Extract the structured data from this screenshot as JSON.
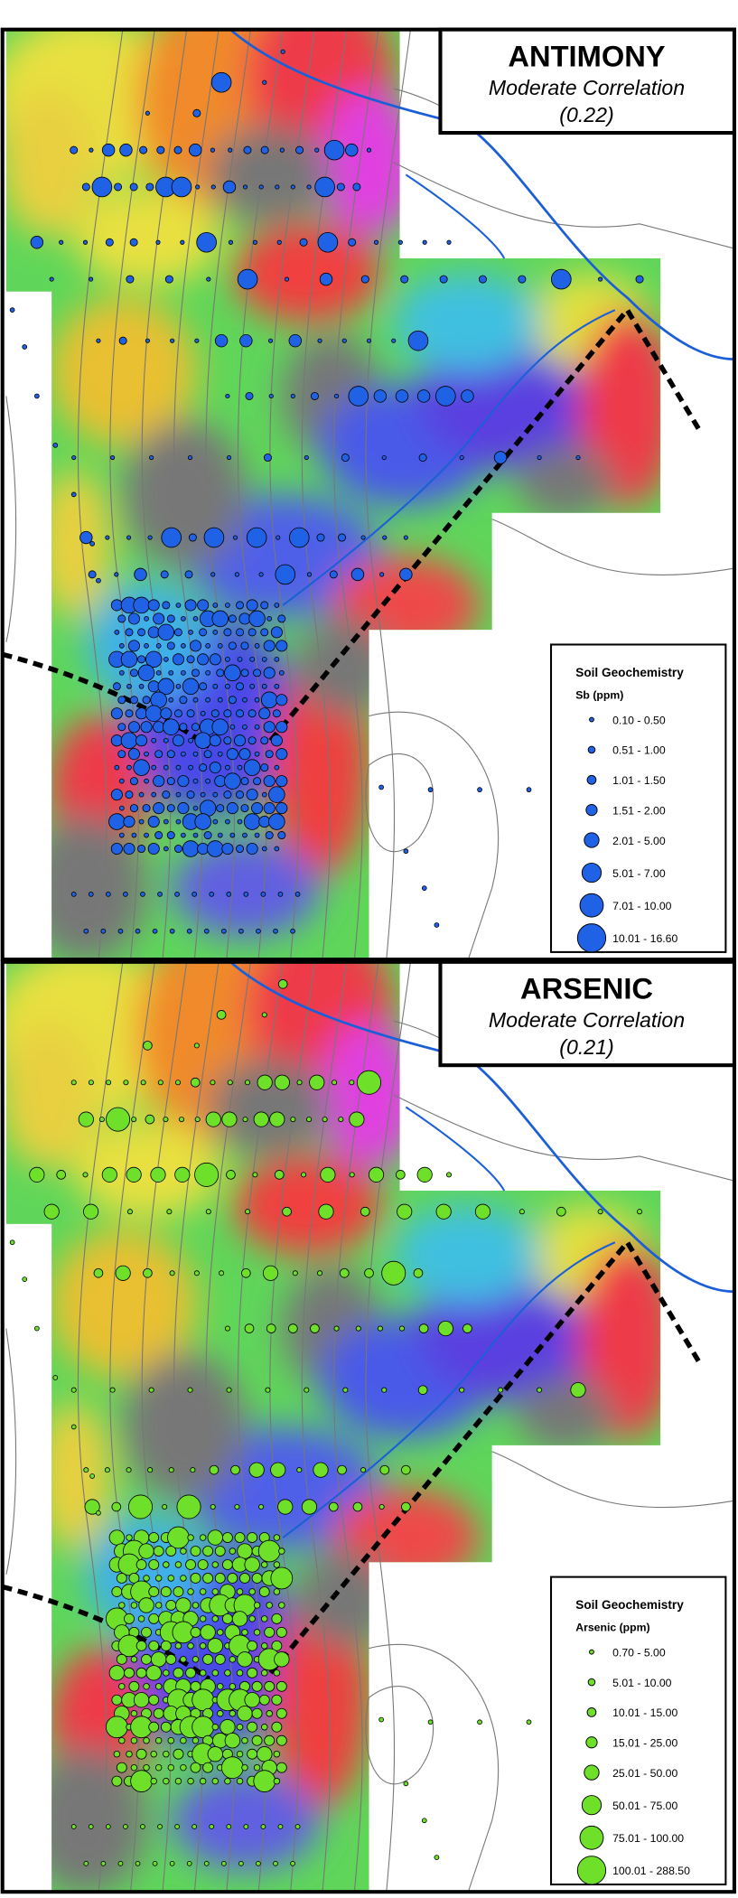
{
  "panels": [
    {
      "title": "ANTIMONY",
      "subtitle": "Moderate Correlation",
      "correlation": "(0.22)",
      "legend": {
        "title": "Soil Geochemistry",
        "unit": "Sb (ppm)",
        "classes": [
          "0.10 - 0.50",
          "0.51 - 1.00",
          "1.01 - 1.50",
          "1.51 - 2.00",
          "2.01 - 5.00",
          "5.01 - 7.00",
          "7.01 - 10.00",
          "10.01 - 16.60"
        ]
      }
    },
    {
      "title": "ARSENIC",
      "subtitle": "Moderate Correlation",
      "correlation": "(0.21)",
      "legend": {
        "title": "Soil Geochemistry",
        "unit": "Arsenic (ppm)",
        "classes": [
          "0.70 - 5.00",
          "5.01 - 10.00",
          "10.01 - 15.00",
          "15.01 - 25.00",
          "25.01 - 50.00",
          "50.01 - 75.00",
          "75.01 - 100.00",
          "100.01 - 288.50"
        ]
      }
    }
  ]
}
